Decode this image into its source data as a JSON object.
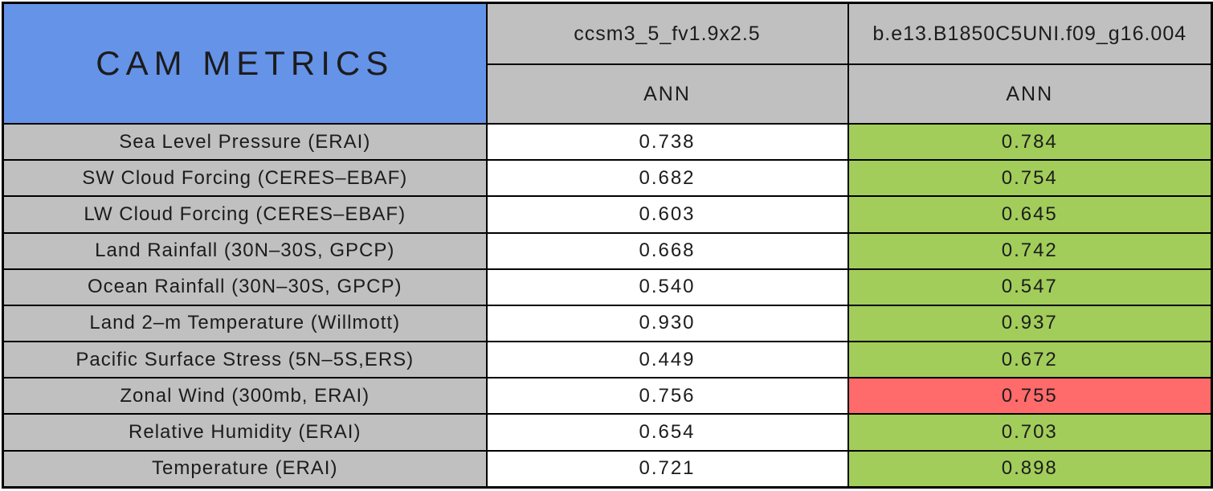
{
  "table": {
    "title": "CAM METRICS",
    "columns": [
      {
        "model": "ccsm3_5_fv1.9x2.5",
        "season": "ANN"
      },
      {
        "model": "b.e13.B1850C5UNI.f09_g16.004",
        "season": "ANN"
      }
    ],
    "rows": [
      {
        "label": "Sea Level Pressure (ERAI)",
        "values": [
          "0.738",
          "0.784"
        ],
        "highlight": "green"
      },
      {
        "label": "SW Cloud Forcing (CERES–EBAF)",
        "values": [
          "0.682",
          "0.754"
        ],
        "highlight": "green"
      },
      {
        "label": "LW Cloud Forcing (CERES–EBAF)",
        "values": [
          "0.603",
          "0.645"
        ],
        "highlight": "green"
      },
      {
        "label": "Land Rainfall (30N–30S, GPCP)",
        "values": [
          "0.668",
          "0.742"
        ],
        "highlight": "green"
      },
      {
        "label": "Ocean Rainfall (30N–30S, GPCP)",
        "values": [
          "0.540",
          "0.547"
        ],
        "highlight": "green"
      },
      {
        "label": "Land 2–m Temperature (Willmott)",
        "values": [
          "0.930",
          "0.937"
        ],
        "highlight": "green"
      },
      {
        "label": "Pacific Surface Stress (5N–5S,ERS)",
        "values": [
          "0.449",
          "0.672"
        ],
        "highlight": "green"
      },
      {
        "label": "Zonal Wind (300mb, ERAI)",
        "values": [
          "0.756",
          "0.755"
        ],
        "highlight": "red"
      },
      {
        "label": "Relative Humidity (ERAI)",
        "values": [
          "0.654",
          "0.703"
        ],
        "highlight": "green"
      },
      {
        "label": "Temperature (ERAI)",
        "values": [
          "0.721",
          "0.898"
        ],
        "highlight": "green"
      }
    ]
  },
  "colors": {
    "title_blue": "#6593E8",
    "header_gray": "#C0C0C0",
    "cell_white": "#FFFFFF",
    "better_green": "#A2CD5A",
    "worse_red": "#FF6A6A",
    "border_black": "#000000"
  },
  "chart_data": {
    "type": "table",
    "title": "CAM METRICS",
    "columns": [
      "ccsm3_5_fv1.9x2.5 (ANN)",
      "b.e13.B1850C5UNI.f09_g16.004 (ANN)"
    ],
    "metrics": [
      "Sea Level Pressure (ERAI)",
      "SW Cloud Forcing (CERES–EBAF)",
      "LW Cloud Forcing (CERES–EBAF)",
      "Land Rainfall (30N–30S, GPCP)",
      "Ocean Rainfall (30N–30S, GPCP)",
      "Land 2–m Temperature (Willmott)",
      "Pacific Surface Stress (5N–5S,ERS)",
      "Zonal Wind (300mb, ERAI)",
      "Relative Humidity (ERAI)",
      "Temperature (ERAI)"
    ],
    "values": [
      [
        0.738,
        0.784
      ],
      [
        0.682,
        0.754
      ],
      [
        0.603,
        0.645
      ],
      [
        0.668,
        0.742
      ],
      [
        0.54,
        0.547
      ],
      [
        0.93,
        0.937
      ],
      [
        0.449,
        0.672
      ],
      [
        0.756,
        0.755
      ],
      [
        0.654,
        0.703
      ],
      [
        0.721,
        0.898
      ]
    ],
    "second_column_cell_color": [
      "green",
      "green",
      "green",
      "green",
      "green",
      "green",
      "green",
      "red",
      "green",
      "green"
    ]
  }
}
